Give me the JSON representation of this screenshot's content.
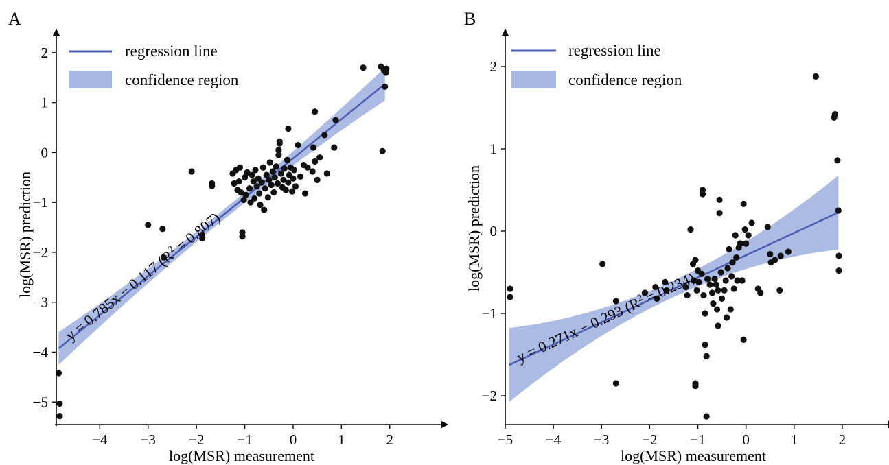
{
  "figure": {
    "colors": {
      "line": "#4a5cb0",
      "band": "#a8b7e3",
      "point": "#111111",
      "axis": "#000000"
    },
    "legend": {
      "regression_label": "regression line",
      "confidence_label": "confidence region",
      "placement": "top-left"
    }
  },
  "chart_data": [
    {
      "panel": "A",
      "type": "scatter",
      "xlabel": "log(MSR) measurement",
      "ylabel": "log(MSR) prediction",
      "xlim": [
        -4.9,
        2.6
      ],
      "ylim": [
        -5.45,
        2.3
      ],
      "xticks": [
        -4,
        -3,
        -2,
        -1,
        0,
        1,
        2
      ],
      "yticks": [
        -5,
        -4,
        -3,
        -2,
        -1,
        0,
        1,
        2
      ],
      "fit": {
        "slope": 0.785,
        "intercept": -0.117,
        "x_range": [
          -4.85,
          1.9
        ],
        "band_halfwidth_ends": 0.33,
        "band_halfwidth_center": 0.1,
        "equation_prefix": "y = 0.785x − 0.117 (R",
        "equation_suffix": " = 0.807)",
        "exponent": "2"
      },
      "points": [
        [
          -4.85,
          -4.42
        ],
        [
          -4.83,
          -5.03
        ],
        [
          -4.83,
          -5.28
        ],
        [
          -3.0,
          -1.45
        ],
        [
          -2.7,
          -1.53
        ],
        [
          -2.68,
          -2.1
        ],
        [
          -2.1,
          -0.38
        ],
        [
          -1.88,
          -1.65
        ],
        [
          -1.88,
          -1.72
        ],
        [
          -1.68,
          -0.62
        ],
        [
          -1.68,
          -0.67
        ],
        [
          -1.25,
          -0.42
        ],
        [
          -1.22,
          -0.62
        ],
        [
          -1.18,
          -0.35
        ],
        [
          -1.15,
          -0.75
        ],
        [
          -1.12,
          -0.58
        ],
        [
          -1.1,
          -0.3
        ],
        [
          -1.08,
          -0.8
        ],
        [
          -1.05,
          -1.6
        ],
        [
          -1.05,
          -1.68
        ],
        [
          -1.02,
          -0.95
        ],
        [
          -1.0,
          -0.5
        ],
        [
          -0.98,
          -0.85
        ],
        [
          -0.95,
          -0.4
        ],
        [
          -0.9,
          -0.72
        ],
        [
          -0.88,
          -1.0
        ],
        [
          -0.85,
          -0.45
        ],
        [
          -0.82,
          -0.58
        ],
        [
          -0.8,
          -0.92
        ],
        [
          -0.78,
          -0.35
        ],
        [
          -0.75,
          -0.68
        ],
        [
          -0.72,
          -0.52
        ],
        [
          -0.7,
          -0.82
        ],
        [
          -0.68,
          -1.05
        ],
        [
          -0.65,
          -0.6
        ],
        [
          -0.62,
          -0.3
        ],
        [
          -0.6,
          -1.15
        ],
        [
          -0.58,
          -0.72
        ],
        [
          -0.55,
          -0.45
        ],
        [
          -0.52,
          -0.9
        ],
        [
          -0.5,
          -0.55
        ],
        [
          -0.48,
          -0.2
        ],
        [
          -0.45,
          -0.65
        ],
        [
          -0.42,
          -0.38
        ],
        [
          -0.4,
          -0.8
        ],
        [
          -0.38,
          -0.5
        ],
        [
          -0.35,
          -0.28
        ],
        [
          -0.32,
          -0.62
        ],
        [
          -0.3,
          -0.05
        ],
        [
          -0.3,
          0.05
        ],
        [
          -0.28,
          0.18
        ],
        [
          -0.28,
          0.22
        ],
        [
          -0.25,
          -0.42
        ],
        [
          -0.22,
          -0.7
        ],
        [
          -0.2,
          -0.55
        ],
        [
          -0.18,
          -0.32
        ],
        [
          -0.15,
          -0.75
        ],
        [
          -0.12,
          -0.15
        ],
        [
          -0.1,
          -0.6
        ],
        [
          -0.1,
          0.48
        ],
        [
          -0.08,
          -0.45
        ],
        [
          -0.05,
          -0.3
        ],
        [
          -0.02,
          -0.78
        ],
        [
          0.0,
          -0.52
        ],
        [
          0.02,
          -0.35
        ],
        [
          0.05,
          -0.68
        ],
        [
          0.1,
          0.15
        ],
        [
          0.15,
          -0.48
        ],
        [
          0.22,
          -0.25
        ],
        [
          0.25,
          -0.82
        ],
        [
          0.3,
          -0.3
        ],
        [
          0.4,
          -0.38
        ],
        [
          0.42,
          0.1
        ],
        [
          0.45,
          -0.18
        ],
        [
          0.45,
          0.82
        ],
        [
          0.5,
          -0.55
        ],
        [
          0.55,
          -0.1
        ],
        [
          0.65,
          0.35
        ],
        [
          0.7,
          -0.42
        ],
        [
          0.85,
          0.1
        ],
        [
          0.88,
          0.65
        ],
        [
          1.45,
          1.7
        ],
        [
          1.82,
          1.72
        ],
        [
          1.85,
          0.03
        ],
        [
          1.88,
          1.65
        ],
        [
          1.9,
          1.32
        ],
        [
          1.92,
          1.6
        ],
        [
          1.93,
          1.68
        ]
      ]
    },
    {
      "panel": "B",
      "type": "scatter",
      "xlabel": "log(MSR) measurement",
      "ylabel": "log(MSR) prediction",
      "xlim": [
        -5.0,
        2.5
      ],
      "ylim": [
        -2.35,
        2.35
      ],
      "xticks": [
        -5,
        -4,
        -3,
        -2,
        -1,
        0,
        1,
        2
      ],
      "yticks": [
        -2,
        -1,
        0,
        1,
        2
      ],
      "fit": {
        "slope": 0.271,
        "intercept": -0.293,
        "x_range": [
          -4.92,
          1.92
        ],
        "band_halfwidth_ends": 0.45,
        "band_halfwidth_center": 0.1,
        "equation_prefix": "y = 0.271x − 0.293 (R",
        "equation_suffix": " = 0.234)",
        "exponent": "2"
      },
      "points": [
        [
          -4.9,
          -0.7
        ],
        [
          -4.9,
          -0.8
        ],
        [
          -2.98,
          -0.4
        ],
        [
          -2.7,
          -1.85
        ],
        [
          -2.7,
          -0.85
        ],
        [
          -2.1,
          -0.75
        ],
        [
          -1.88,
          -0.68
        ],
        [
          -1.85,
          -0.82
        ],
        [
          -1.68,
          -0.62
        ],
        [
          -1.65,
          -0.72
        ],
        [
          -1.25,
          -0.68
        ],
        [
          -1.22,
          -0.78
        ],
        [
          -1.15,
          0.02
        ],
        [
          -1.1,
          -0.4
        ],
        [
          -1.08,
          -0.6
        ],
        [
          -1.05,
          -1.85
        ],
        [
          -1.05,
          -1.88
        ],
        [
          -1.05,
          -0.35
        ],
        [
          -1.02,
          -0.72
        ],
        [
          -1.0,
          -0.48
        ],
        [
          -0.98,
          -0.62
        ],
        [
          -0.92,
          -0.52
        ],
        [
          -0.9,
          0.45
        ],
        [
          -0.9,
          0.5
        ],
        [
          -0.88,
          -0.78
        ],
        [
          -0.85,
          -1.0
        ],
        [
          -0.85,
          -1.38
        ],
        [
          -0.82,
          -1.52
        ],
        [
          -0.82,
          -2.25
        ],
        [
          -0.8,
          -0.58
        ],
        [
          -0.75,
          -0.65
        ],
        [
          -0.7,
          -0.75
        ],
        [
          -0.68,
          -0.88
        ],
        [
          -0.65,
          -0.58
        ],
        [
          -0.62,
          -0.65
        ],
        [
          -0.6,
          -0.95
        ],
        [
          -0.58,
          -1.15
        ],
        [
          -0.58,
          -0.72
        ],
        [
          -0.55,
          0.38
        ],
        [
          -0.55,
          0.22
        ],
        [
          -0.52,
          -0.5
        ],
        [
          -0.5,
          -0.82
        ],
        [
          -0.45,
          -0.72
        ],
        [
          -0.42,
          -0.6
        ],
        [
          -0.4,
          -1.05
        ],
        [
          -0.38,
          -0.45
        ],
        [
          -0.35,
          -0.22
        ],
        [
          -0.32,
          -0.95
        ],
        [
          -0.3,
          -0.55
        ],
        [
          -0.28,
          -0.38
        ],
        [
          -0.25,
          -0.7
        ],
        [
          -0.22,
          -0.05
        ],
        [
          -0.2,
          -0.32
        ],
        [
          -0.18,
          -0.6
        ],
        [
          -0.15,
          -0.2
        ],
        [
          -0.12,
          -0.15
        ],
        [
          -0.08,
          -0.6
        ],
        [
          -0.05,
          -1.32
        ],
        [
          -0.05,
          0.33
        ],
        [
          -0.02,
          0.02
        ],
        [
          0.0,
          -0.15
        ],
        [
          0.05,
          -0.05
        ],
        [
          0.12,
          0.1
        ],
        [
          0.25,
          -0.7
        ],
        [
          0.3,
          -0.75
        ],
        [
          0.45,
          0.05
        ],
        [
          0.5,
          -0.28
        ],
        [
          0.52,
          -0.38
        ],
        [
          0.6,
          -0.35
        ],
        [
          0.7,
          -0.72
        ],
        [
          0.72,
          -0.3
        ],
        [
          0.88,
          -0.25
        ],
        [
          1.45,
          1.88
        ],
        [
          1.83,
          1.38
        ],
        [
          1.85,
          1.42
        ],
        [
          1.9,
          0.86
        ],
        [
          1.92,
          0.25
        ],
        [
          1.93,
          -0.3
        ],
        [
          1.93,
          -0.48
        ]
      ]
    }
  ]
}
